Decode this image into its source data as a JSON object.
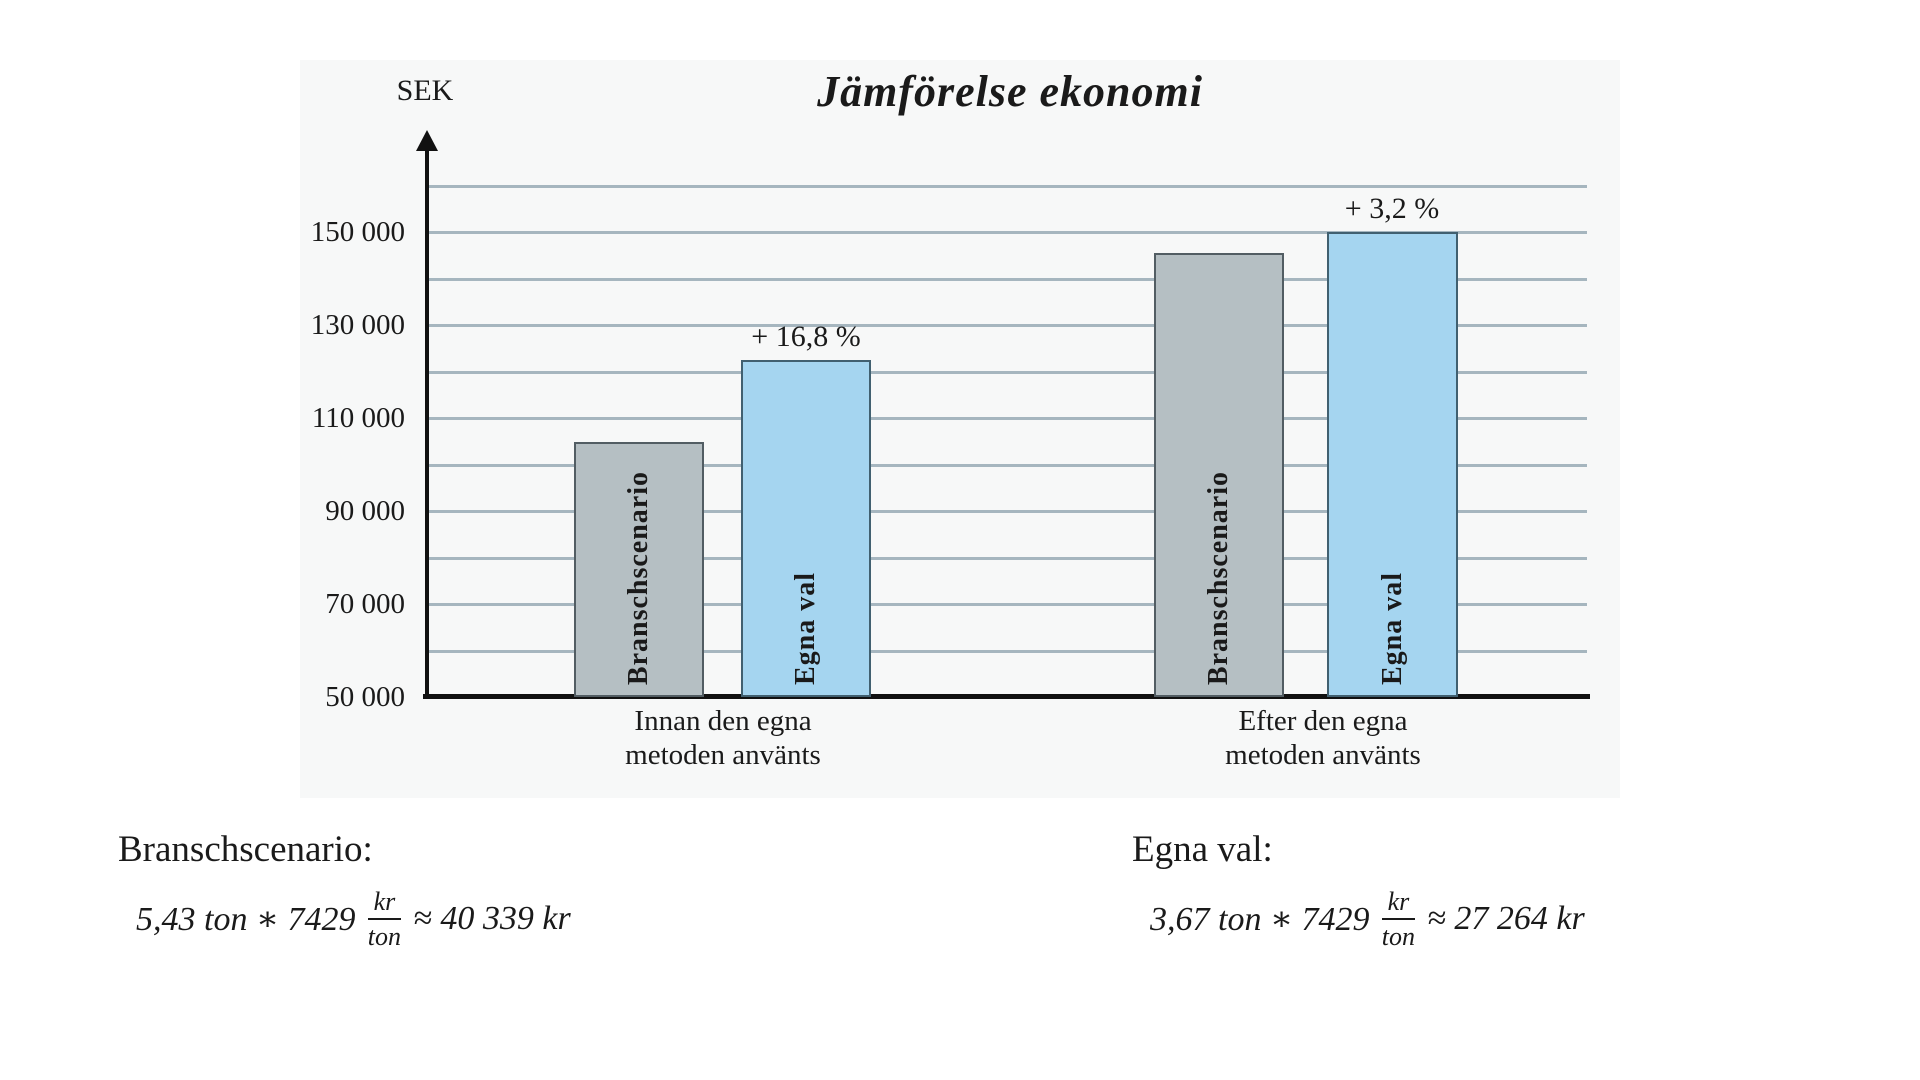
{
  "chart_data": {
    "type": "bar",
    "title": "Jämförelse ekonomi",
    "ylabel": "SEK",
    "xlabel": "",
    "ylim": [
      50000,
      160000
    ],
    "gridline_step": 10000,
    "grid": true,
    "legend_position": "none",
    "ytick_labels": [
      "150 000",
      "130 000",
      "110 000",
      "90 000",
      "70 000",
      "50 000"
    ],
    "ytick_values": [
      150000,
      130000,
      110000,
      90000,
      70000,
      50000
    ],
    "categories": [
      "Innan den egna metoden använts",
      "Efter den egna metoden använts"
    ],
    "groups": [
      {
        "line1": "Innan den egna",
        "line2": "metoden använts"
      },
      {
        "line1": "Efter den egna",
        "line2": "metoden använts"
      }
    ],
    "series": [
      {
        "name": "Branschscenario",
        "values": [
          105000,
          145500
        ],
        "color": "#b5bfc3"
      },
      {
        "name": "Egna val",
        "values": [
          122600,
          150150
        ],
        "color": "#a5d5f0"
      }
    ],
    "annotations": [
      "+ 16,8 %",
      "+ 3,2 %"
    ]
  },
  "colors": {
    "panel_background": "#f7f8f8",
    "gridline": "#a6b6bf",
    "axis": "#111111",
    "bar_gray": "#b5bfc3",
    "bar_blue": "#a5d5f0",
    "text": "#1a1a1a"
  },
  "formulas": {
    "left": {
      "heading": "Branschscenario:",
      "lead": "5,43 ton ∗ 7429",
      "frac_num": "kr",
      "frac_den": "ton",
      "tail": "≈ 40 339 kr"
    },
    "right": {
      "heading": "Egna val:",
      "lead": "3,67 ton ∗ 7429",
      "frac_num": "kr",
      "frac_den": "ton",
      "tail": "≈ 27 264 kr"
    }
  }
}
